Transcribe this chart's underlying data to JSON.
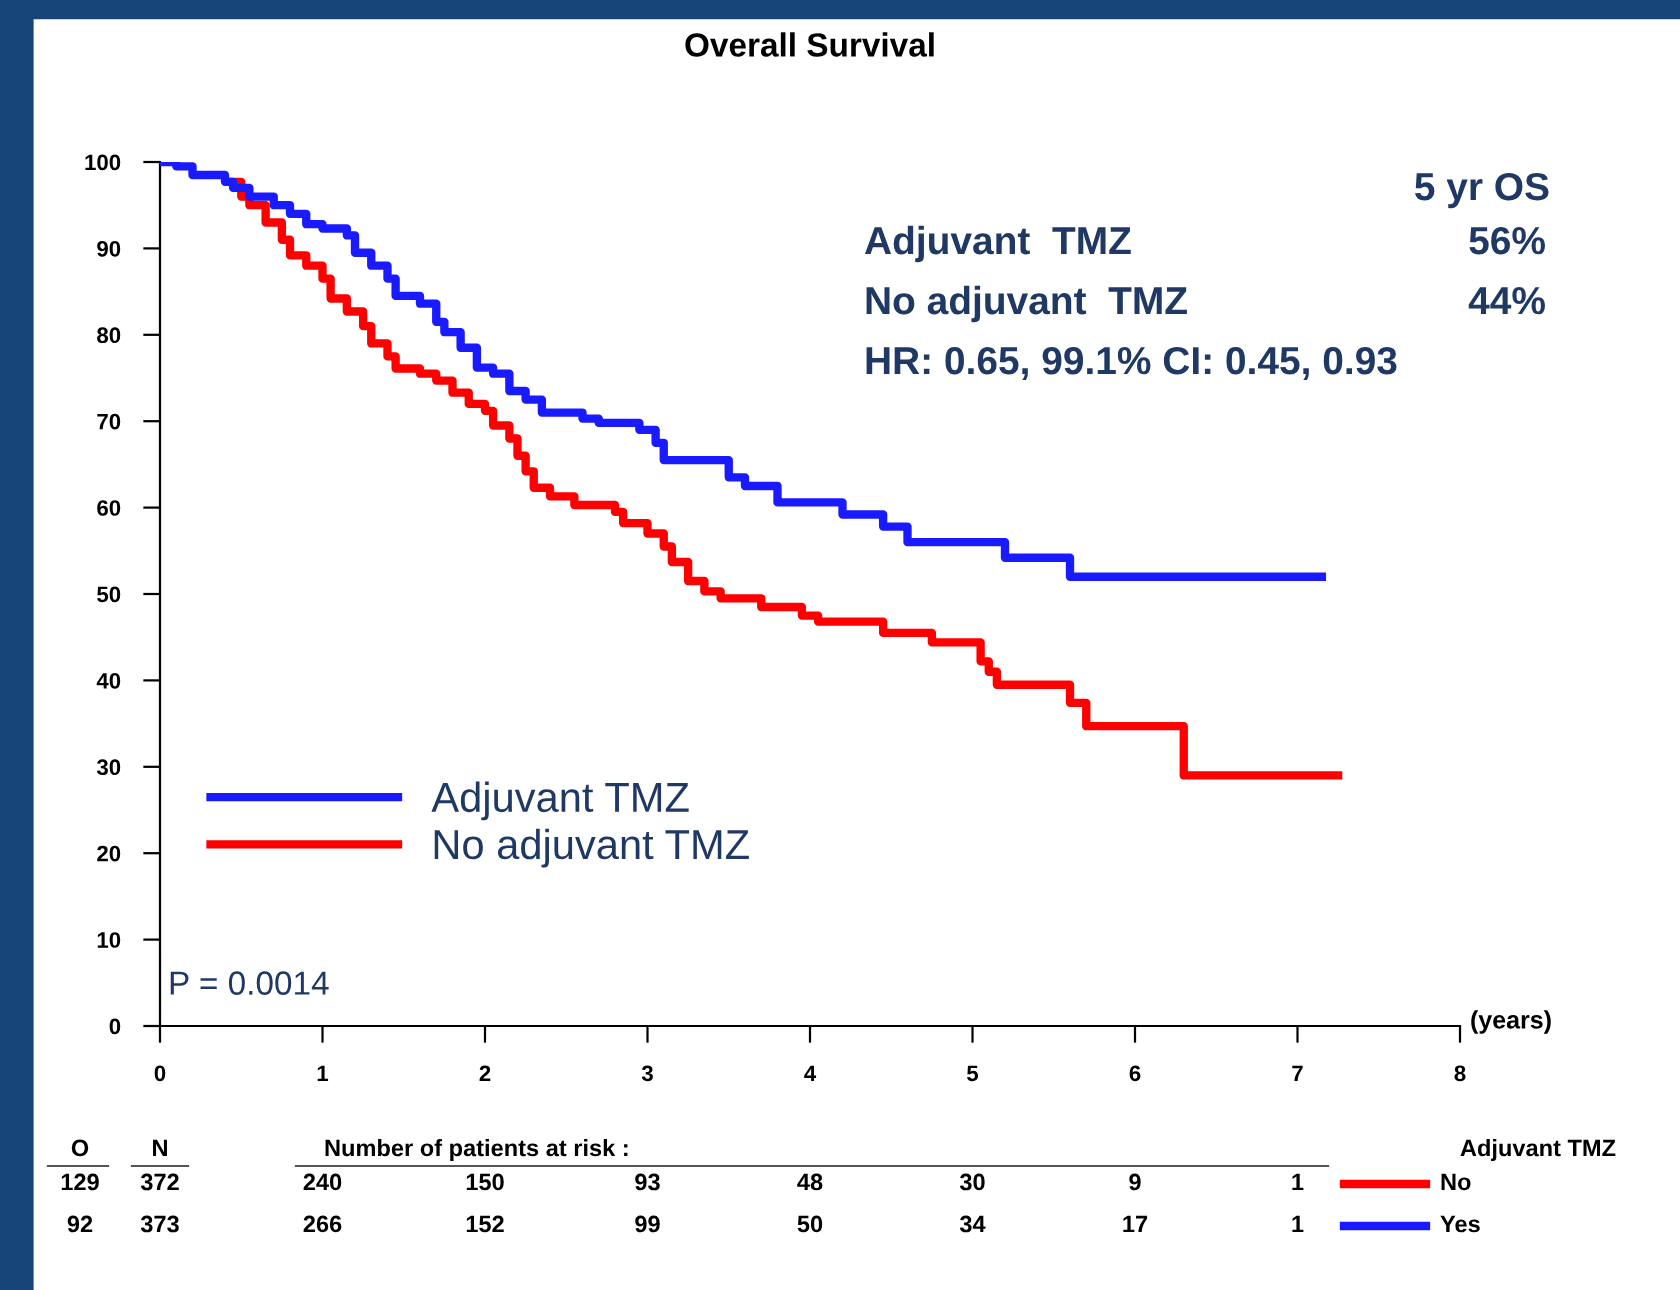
{
  "chart_data": {
    "type": "step",
    "title": "Overall Survival",
    "series": [
      {
        "name": "Adjuvant TMZ",
        "color": "#1a1aff",
        "x": [
          0,
          0.1,
          0.2,
          0.4,
          0.45,
          0.55,
          0.7,
          0.8,
          0.9,
          1.0,
          1.15,
          1.2,
          1.3,
          1.4,
          1.45,
          1.6,
          1.7,
          1.75,
          1.85,
          1.95,
          2.05,
          2.15,
          2.25,
          2.35,
          2.6,
          2.7,
          2.95,
          3.05,
          3.1,
          3.5,
          3.6,
          3.8,
          4.2,
          4.45,
          4.6,
          5.2,
          5.6,
          7.15
        ],
        "values": [
          100,
          99.5,
          98.5,
          97.7,
          97,
          96,
          95,
          94,
          92.8,
          92.3,
          91.5,
          89.5,
          88,
          86.5,
          84.5,
          83.6,
          81.5,
          80.3,
          78.5,
          76.2,
          75.5,
          73.5,
          72.5,
          71,
          70.3,
          69.8,
          69,
          67.5,
          65.5,
          63.5,
          62.5,
          60.6,
          59.2,
          57.8,
          56,
          54.2,
          52,
          52
        ]
      },
      {
        "name": "No adjuvant TMZ",
        "color": "#ff0000",
        "x": [
          0.45,
          0.5,
          0.55,
          0.65,
          0.75,
          0.8,
          0.9,
          1.0,
          1.05,
          1.15,
          1.25,
          1.3,
          1.4,
          1.45,
          1.6,
          1.7,
          1.8,
          1.9,
          2.0,
          2.05,
          2.15,
          2.2,
          2.25,
          2.3,
          2.4,
          2.55,
          2.8,
          2.85,
          3.0,
          3.1,
          3.15,
          3.25,
          3.35,
          3.45,
          3.7,
          3.95,
          4.05,
          4.45,
          4.75,
          5.05,
          5.1,
          5.15,
          5.6,
          5.7,
          6.3,
          7.25
        ],
        "values": [
          97.7,
          96,
          95,
          93,
          91,
          89.2,
          88,
          86.5,
          84.2,
          82.7,
          81,
          79,
          77.5,
          76.1,
          75.5,
          74.7,
          73.3,
          72,
          71.2,
          69.5,
          68,
          66,
          64.2,
          62.3,
          61.3,
          60.3,
          59.5,
          58.2,
          57,
          55.5,
          53.7,
          51.5,
          50.3,
          49.5,
          48.5,
          47.5,
          46.8,
          45.5,
          44.4,
          42.2,
          41,
          39.5,
          37.4,
          34.7,
          29,
          29
        ]
      }
    ],
    "xlim": [
      0,
      8
    ],
    "xticks": [
      0,
      1,
      2,
      3,
      4,
      5,
      6,
      7,
      8
    ],
    "ylim": [
      0,
      100
    ],
    "yticks": [
      0,
      10,
      20,
      30,
      40,
      50,
      60,
      70,
      80,
      90,
      100
    ],
    "grid": false,
    "legend": "bottom left",
    "line_style": "solid",
    "marker": "none",
    "annotations": [
      "5 yr OS",
      "Adjuvant  TMZ",
      "56%",
      "No adjuvant  TMZ",
      "44%",
      "HR: 0.65, 99.1% CI: 0.45, 0.93",
      "P = 0.0014",
      "(years)",
      "O",
      "N",
      "Number of patients at risk :",
      "Adjuvant TMZ",
      "129",
      "372",
      "240",
      "150",
      "93",
      "48",
      "30",
      "9",
      "1",
      "No",
      "92",
      "373",
      "266",
      "152",
      "99",
      "50",
      "34",
      "17",
      "1",
      "Yes"
    ]
  }
}
